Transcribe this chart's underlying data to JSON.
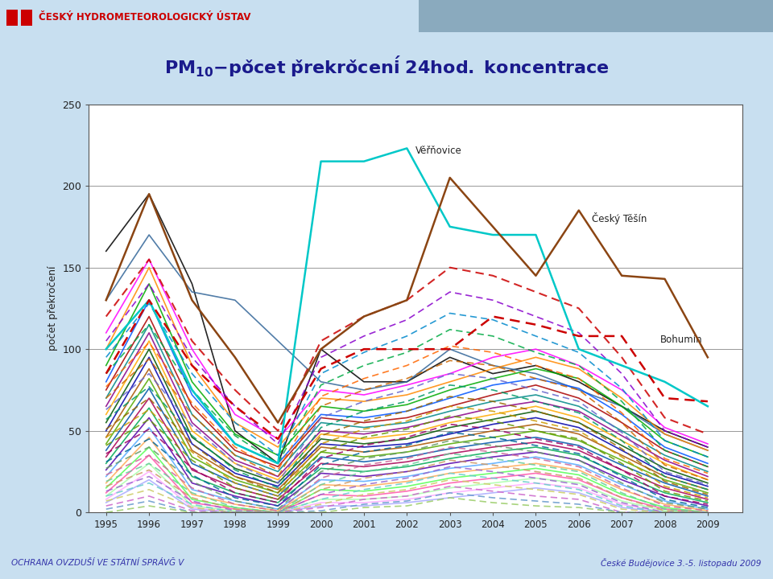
{
  "title_main": "PM",
  "title_sub": "10",
  "title_rest": " - počet překročení 24hod. koncentrace",
  "ylabel": "počet překročení",
  "years": [
    1995,
    1996,
    1997,
    1998,
    1999,
    2000,
    2001,
    2002,
    2003,
    2004,
    2005,
    2006,
    2007,
    2008,
    2009
  ],
  "ylim": [
    0,
    250
  ],
  "yticks": [
    0,
    50,
    100,
    150,
    200,
    250
  ],
  "bg_color": "#c8dff0",
  "plot_bg": "#ffffff",
  "header_bg": "#ffffff",
  "title_color": "#1a1a8c",
  "label_Vernovic": "Věřňovice",
  "label_CeskyTesin": "Český Těšín",
  "label_Bohumin": "Bohumín",
  "header_text": "Český hydrometeorologický ústav",
  "footer_left": "OCHRANA OVZDUŠÍ VE STÁTNÍ SPRÁVĞ V",
  "footer_right": "České Budějovice 3.-5. listopadu 2009",
  "series_solid": [
    {
      "values": [
        160,
        195,
        140,
        50,
        30,
        100,
        80,
        80,
        95,
        85,
        90,
        80,
        65,
        50,
        40
      ],
      "color": "#000000",
      "lw": 1.2
    },
    {
      "values": [
        130,
        170,
        135,
        130,
        105,
        80,
        75,
        80,
        100,
        90,
        85,
        75,
        65,
        48,
        38
      ],
      "color": "#336699",
      "lw": 1.2
    },
    {
      "values": [
        110,
        155,
        100,
        60,
        45,
        75,
        72,
        78,
        85,
        95,
        100,
        90,
        75,
        52,
        42
      ],
      "color": "#ff00ff",
      "lw": 1.2
    },
    {
      "values": [
        100,
        150,
        90,
        55,
        40,
        70,
        68,
        72,
        80,
        88,
        95,
        88,
        70,
        48,
        38
      ],
      "color": "#ff8800",
      "lw": 1.2
    },
    {
      "values": [
        90,
        140,
        80,
        48,
        35,
        65,
        62,
        66,
        75,
        82,
        88,
        82,
        65,
        44,
        34
      ],
      "color": "#00aa00",
      "lw": 1.2
    },
    {
      "values": [
        80,
        130,
        72,
        42,
        30,
        60,
        58,
        62,
        70,
        78,
        82,
        76,
        60,
        40,
        30
      ],
      "color": "#0055ff",
      "lw": 1.2
    },
    {
      "values": [
        75,
        120,
        65,
        38,
        28,
        58,
        55,
        58,
        65,
        72,
        78,
        70,
        55,
        38,
        28
      ],
      "color": "#aa0000",
      "lw": 1.2
    },
    {
      "values": [
        70,
        115,
        60,
        35,
        25,
        55,
        52,
        55,
        62,
        68,
        72,
        65,
        50,
        35,
        25
      ],
      "color": "#008888",
      "lw": 1.2
    },
    {
      "values": [
        65,
        110,
        55,
        32,
        22,
        50,
        48,
        52,
        58,
        64,
        68,
        62,
        47,
        32,
        22
      ],
      "color": "#880088",
      "lw": 1.2
    },
    {
      "values": [
        60,
        105,
        50,
        30,
        20,
        48,
        45,
        48,
        55,
        60,
        65,
        58,
        44,
        30,
        20
      ],
      "color": "#ffaa00",
      "lw": 1.2
    },
    {
      "values": [
        55,
        100,
        46,
        27,
        18,
        45,
        42,
        45,
        52,
        57,
        62,
        55,
        41,
        27,
        18
      ],
      "color": "#005500",
      "lw": 1.2
    },
    {
      "values": [
        50,
        95,
        42,
        24,
        16,
        42,
        40,
        42,
        48,
        54,
        58,
        52,
        38,
        24,
        16
      ],
      "color": "#0000aa",
      "lw": 1.2
    },
    {
      "values": [
        46,
        88,
        38,
        22,
        14,
        40,
        37,
        40,
        45,
        50,
        54,
        48,
        35,
        22,
        14
      ],
      "color": "#aa5500",
      "lw": 1.2
    },
    {
      "values": [
        42,
        82,
        34,
        20,
        12,
        37,
        34,
        37,
        42,
        46,
        50,
        44,
        32,
        20,
        12
      ],
      "color": "#55aa00",
      "lw": 1.2
    },
    {
      "values": [
        38,
        76,
        30,
        18,
        10,
        34,
        31,
        34,
        39,
        43,
        46,
        41,
        29,
        18,
        10
      ],
      "color": "#0055aa",
      "lw": 1.2
    },
    {
      "values": [
        34,
        70,
        26,
        15,
        8,
        30,
        28,
        31,
        36,
        40,
        43,
        38,
        26,
        15,
        8
      ],
      "color": "#aa0055",
      "lw": 1.2
    },
    {
      "values": [
        30,
        64,
        22,
        12,
        6,
        27,
        25,
        28,
        33,
        37,
        40,
        35,
        23,
        12,
        6
      ],
      "color": "#00aa55",
      "lw": 1.2
    },
    {
      "values": [
        26,
        58,
        18,
        10,
        4,
        24,
        22,
        25,
        30,
        34,
        37,
        32,
        20,
        10,
        4
      ],
      "color": "#5500aa",
      "lw": 1.2
    },
    {
      "values": [
        22,
        52,
        14,
        7,
        2,
        20,
        19,
        22,
        27,
        30,
        34,
        29,
        17,
        7,
        2
      ],
      "color": "#55aaff",
      "lw": 1.2
    },
    {
      "values": [
        18,
        46,
        11,
        5,
        1,
        17,
        16,
        19,
        24,
        27,
        30,
        26,
        14,
        5,
        1
      ],
      "color": "#ffaa55",
      "lw": 1.2
    },
    {
      "values": [
        15,
        40,
        8,
        3,
        0,
        14,
        13,
        16,
        21,
        24,
        27,
        23,
        11,
        3,
        0
      ],
      "color": "#55ff55",
      "lw": 1.2
    },
    {
      "values": [
        12,
        35,
        6,
        2,
        0,
        11,
        10,
        13,
        18,
        21,
        24,
        20,
        9,
        2,
        0
      ],
      "color": "#ff55aa",
      "lw": 1.2
    },
    {
      "values": [
        10,
        30,
        4,
        1,
        0,
        8,
        8,
        10,
        15,
        18,
        21,
        18,
        7,
        1,
        0
      ],
      "color": "#aaffaa",
      "lw": 1.2
    },
    {
      "values": [
        8,
        25,
        3,
        0,
        0,
        6,
        6,
        8,
        12,
        15,
        18,
        15,
        5,
        0,
        0
      ],
      "color": "#ffaaff",
      "lw": 1.2
    },
    {
      "values": [
        6,
        20,
        2,
        0,
        0,
        4,
        4,
        6,
        9,
        12,
        15,
        12,
        3,
        0,
        0
      ],
      "color": "#aaaaff",
      "lw": 1.2
    }
  ],
  "series_dashed": [
    {
      "values": [
        120,
        155,
        105,
        75,
        50,
        105,
        120,
        130,
        150,
        145,
        135,
        125,
        95,
        58,
        48
      ],
      "color": "#cc0000",
      "lw": 1.5
    },
    {
      "values": [
        105,
        140,
        95,
        65,
        42,
        95,
        108,
        118,
        135,
        130,
        120,
        110,
        85,
        50,
        40
      ],
      "color": "#8800cc",
      "lw": 1.2
    },
    {
      "values": [
        95,
        128,
        85,
        55,
        35,
        85,
        98,
        108,
        122,
        118,
        108,
        98,
        76,
        44,
        34
      ],
      "color": "#0088cc",
      "lw": 1.2
    },
    {
      "values": [
        85,
        115,
        75,
        47,
        30,
        78,
        90,
        98,
        112,
        108,
        98,
        90,
        68,
        38,
        28
      ],
      "color": "#00aa44",
      "lw": 1.2
    },
    {
      "values": [
        77,
        104,
        67,
        40,
        26,
        71,
        82,
        90,
        102,
        98,
        90,
        82,
        61,
        33,
        24
      ],
      "color": "#ff6600",
      "lw": 1.2
    },
    {
      "values": [
        70,
        94,
        60,
        35,
        22,
        65,
        75,
        82,
        93,
        90,
        82,
        75,
        55,
        29,
        20
      ],
      "color": "#cc6600",
      "lw": 1.2
    },
    {
      "values": [
        63,
        85,
        53,
        30,
        18,
        58,
        68,
        75,
        85,
        82,
        75,
        68,
        49,
        25,
        17
      ],
      "color": "#6666cc",
      "lw": 1.2
    },
    {
      "values": [
        57,
        77,
        47,
        26,
        15,
        52,
        62,
        68,
        78,
        75,
        68,
        61,
        44,
        22,
        14
      ],
      "color": "#009966",
      "lw": 1.2
    },
    {
      "values": [
        51,
        70,
        42,
        22,
        12,
        47,
        56,
        62,
        71,
        68,
        62,
        55,
        39,
        19,
        11
      ],
      "color": "#996600",
      "lw": 1.2
    },
    {
      "values": [
        46,
        63,
        37,
        18,
        10,
        42,
        51,
        56,
        65,
        62,
        56,
        50,
        34,
        16,
        9
      ],
      "color": "#cc9900",
      "lw": 1.2
    },
    {
      "values": [
        41,
        57,
        32,
        15,
        8,
        37,
        46,
        51,
        59,
        56,
        50,
        45,
        30,
        13,
        7
      ],
      "color": "#669900",
      "lw": 1.2
    },
    {
      "values": [
        36,
        51,
        27,
        12,
        6,
        33,
        41,
        46,
        54,
        51,
        45,
        40,
        26,
        10,
        5
      ],
      "color": "#990066",
      "lw": 1.2
    },
    {
      "values": [
        31,
        45,
        23,
        9,
        4,
        29,
        37,
        41,
        49,
        46,
        41,
        36,
        22,
        8,
        3
      ],
      "color": "#006699",
      "lw": 1.2
    },
    {
      "values": [
        27,
        40,
        19,
        7,
        2,
        25,
        33,
        37,
        44,
        41,
        37,
        32,
        18,
        6,
        2
      ],
      "color": "#669966",
      "lw": 1.2
    },
    {
      "values": [
        23,
        35,
        15,
        5,
        1,
        21,
        29,
        33,
        40,
        37,
        33,
        28,
        15,
        4,
        1
      ],
      "color": "#cc6699",
      "lw": 1.2
    },
    {
      "values": [
        19,
        30,
        12,
        3,
        0,
        17,
        25,
        29,
        36,
        33,
        29,
        25,
        12,
        2,
        0
      ],
      "color": "#66cc99",
      "lw": 1.2
    },
    {
      "values": [
        16,
        26,
        9,
        2,
        0,
        14,
        21,
        25,
        32,
        29,
        25,
        21,
        9,
        1,
        0
      ],
      "color": "#cc9966",
      "lw": 1.2
    },
    {
      "values": [
        13,
        22,
        7,
        1,
        0,
        11,
        17,
        21,
        28,
        25,
        21,
        17,
        6,
        0,
        0
      ],
      "color": "#9966cc",
      "lw": 1.2
    },
    {
      "values": [
        10,
        18,
        5,
        0,
        0,
        8,
        14,
        18,
        24,
        21,
        18,
        14,
        4,
        0,
        0
      ],
      "color": "#66cccc",
      "lw": 1.2
    },
    {
      "values": [
        7,
        14,
        3,
        0,
        0,
        5,
        11,
        14,
        20,
        17,
        14,
        11,
        2,
        0,
        0
      ],
      "color": "#cccc66",
      "lw": 1.2
    },
    {
      "values": [
        4,
        10,
        1,
        0,
        0,
        3,
        8,
        10,
        16,
        13,
        10,
        8,
        0,
        0,
        0
      ],
      "color": "#cc66cc",
      "lw": 1.2
    },
    {
      "values": [
        2,
        7,
        0,
        0,
        0,
        1,
        5,
        7,
        12,
        9,
        7,
        5,
        0,
        0,
        0
      ],
      "color": "#6699cc",
      "lw": 1.2
    },
    {
      "values": [
        0,
        4,
        0,
        0,
        0,
        0,
        3,
        4,
        9,
        6,
        4,
        3,
        0,
        0,
        0
      ],
      "color": "#99cc66",
      "lw": 1.2
    }
  ],
  "vernovic": [
    100,
    130,
    75,
    42,
    30,
    215,
    215,
    223,
    175,
    170,
    170,
    100,
    90,
    80,
    65
  ],
  "ceskytesin": [
    130,
    195,
    130,
    95,
    55,
    100,
    120,
    130,
    205,
    175,
    145,
    185,
    145,
    143,
    95
  ],
  "bohumin_dashed": [
    85,
    130,
    90,
    65,
    45,
    88,
    100,
    100,
    100,
    120,
    115,
    108,
    108,
    70,
    68
  ]
}
